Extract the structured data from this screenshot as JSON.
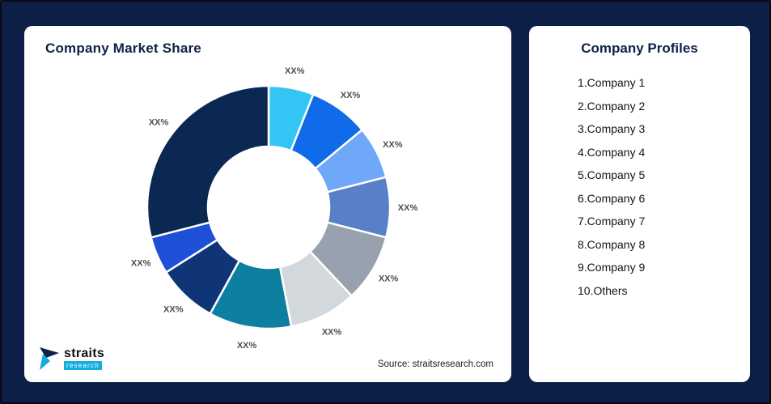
{
  "page": {
    "background": "#0D1F47"
  },
  "chart_card": {
    "title": "Company Market Share",
    "source": "Source: straitsresearch.com"
  },
  "logo": {
    "brand": "straits",
    "sub": "research"
  },
  "profiles_card": {
    "title": "Company Profiles",
    "items": [
      "1.Company 1",
      "2.Company 2",
      "3.Company 3",
      "4.Company 4",
      "5.Company 5",
      "6.Company 6",
      "7.Company 7",
      "8.Company 8",
      "9.Company 9",
      "10.Others"
    ]
  },
  "chart_data": {
    "type": "pie",
    "subtype": "donut",
    "title": "Company Market Share",
    "direction": "clockwise",
    "start_angle_deg": 0,
    "legend": "none",
    "label_color": "#4d4d4d",
    "segments": [
      {
        "label": "XX%",
        "value": 6,
        "color": "#33C5F3"
      },
      {
        "label": "XX%",
        "value": 8,
        "color": "#0F6BE9"
      },
      {
        "label": "XX%",
        "value": 7,
        "color": "#6FA8F8"
      },
      {
        "label": "XX%",
        "value": 8,
        "color": "#5880C6"
      },
      {
        "label": "XX%",
        "value": 9,
        "color": "#97A2AE"
      },
      {
        "label": "XX%",
        "value": 9,
        "color": "#D3D8DD"
      },
      {
        "label": "XX%",
        "value": 11,
        "color": "#0E7FA0"
      },
      {
        "label": "XX%",
        "value": 8,
        "color": "#103577"
      },
      {
        "label": "XX%",
        "value": 5,
        "color": "#1E4FD7"
      },
      {
        "label": "XX%",
        "value": 29,
        "color": "#0B2853"
      }
    ]
  }
}
